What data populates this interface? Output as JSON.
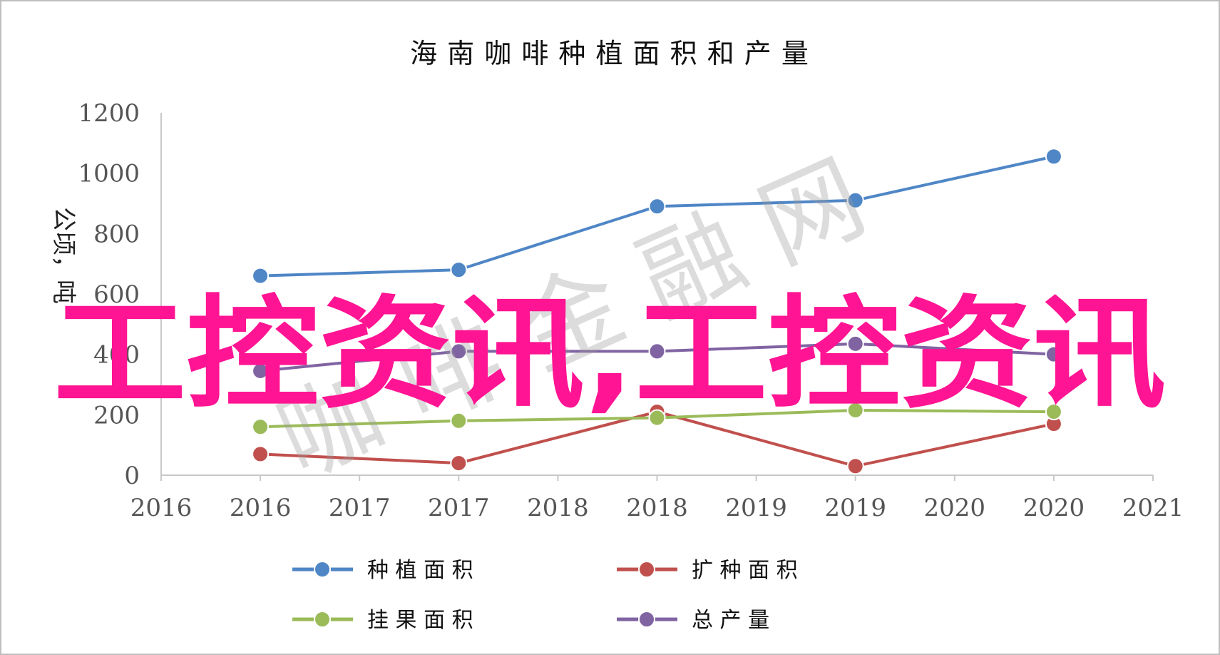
{
  "chart_data": {
    "type": "line",
    "title": "海 南 咖 啡 种 植 面 积 和 产 量",
    "ylabel": "公顷，吨",
    "xlabel": "",
    "ylim": [
      0,
      1200
    ],
    "y_ticks": [
      "0",
      "200",
      "400",
      "600",
      "800",
      "1000",
      "1200"
    ],
    "x_tick_labels": [
      "2016",
      "2016",
      "2017",
      "2017",
      "2018",
      "2018",
      "2019",
      "2019",
      "2020",
      "2020",
      "2021"
    ],
    "x": [
      "2016",
      "2017",
      "2018",
      "2019",
      "2020"
    ],
    "series": [
      {
        "name": "种 植 面 积",
        "color": "#4f86c6",
        "values": [
          660,
          680,
          890,
          910,
          1055
        ]
      },
      {
        "name": "扩 种 面 积",
        "color": "#c0504d",
        "values": [
          70,
          40,
          210,
          30,
          170
        ]
      },
      {
        "name": "挂 果 面 积",
        "color": "#9bbb59",
        "values": [
          160,
          180,
          190,
          215,
          210
        ]
      },
      {
        "name": "总 产 量",
        "color": "#8064a2",
        "values": [
          345,
          410,
          410,
          435,
          400
        ]
      }
    ],
    "grid": false,
    "legend_position": "bottom"
  },
  "overlay": {
    "banner_text": "工控资讯,工控资讯",
    "banner_color": "#ff1493",
    "watermark_text": "咖 啡 金 融 网"
  }
}
